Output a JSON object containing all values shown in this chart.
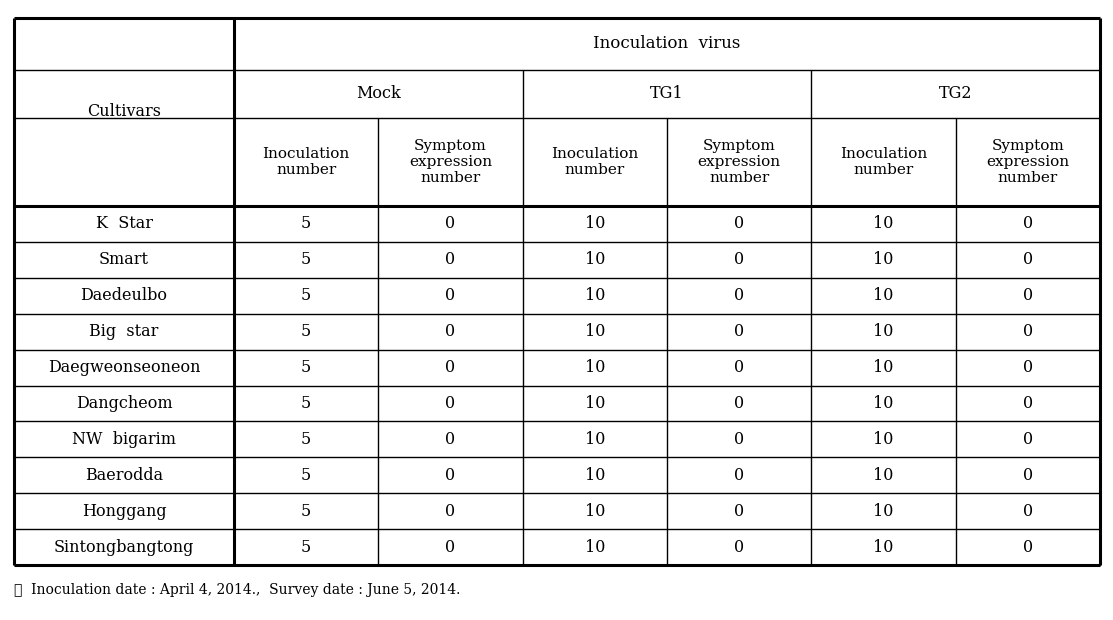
{
  "title": "Inoculation  virus",
  "cultivars_label": "Cultivars",
  "groups": [
    "Mock",
    "TG1",
    "TG2"
  ],
  "col_headers": [
    "Inoculation\nnumber",
    "Symptom\nexpression\nnumber"
  ],
  "cultivars": [
    "K  Star",
    "Smart",
    "Daedeulbo",
    "Big  star",
    "Daegweonseoneon",
    "Dangcheom",
    "NW  bigarim",
    "Baerodda",
    "Honggang",
    "Sintongbangtong"
  ],
  "data": [
    [
      5,
      0,
      10,
      0,
      10,
      0
    ],
    [
      5,
      0,
      10,
      0,
      10,
      0
    ],
    [
      5,
      0,
      10,
      0,
      10,
      0
    ],
    [
      5,
      0,
      10,
      0,
      10,
      0
    ],
    [
      5,
      0,
      10,
      0,
      10,
      0
    ],
    [
      5,
      0,
      10,
      0,
      10,
      0
    ],
    [
      5,
      0,
      10,
      0,
      10,
      0
    ],
    [
      5,
      0,
      10,
      0,
      10,
      0
    ],
    [
      5,
      0,
      10,
      0,
      10,
      0
    ],
    [
      5,
      0,
      10,
      0,
      10,
      0
    ]
  ],
  "footnote": "※  Inoculation date : April 4, 2014.,  Survey date : June 5, 2014.",
  "bg_color": "#ffffff",
  "text_color": "#000000",
  "line_color": "#000000",
  "font_size": 11.5,
  "title_font_size": 12,
  "footnote_font_size": 10
}
